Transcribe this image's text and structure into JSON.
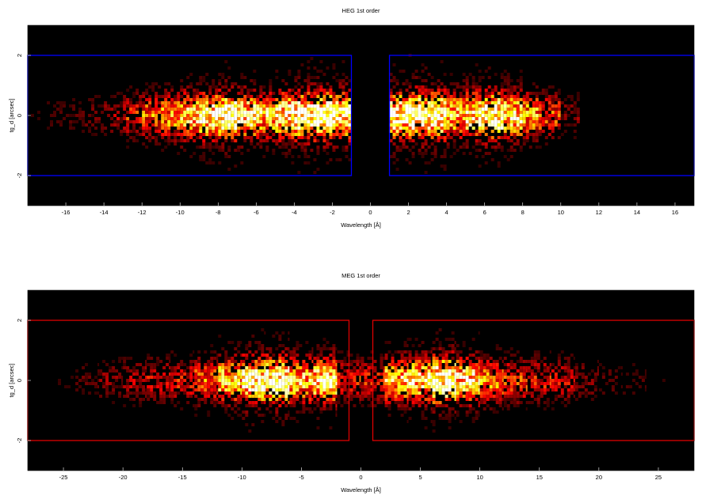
{
  "chart_data": [
    {
      "type": "heatmap",
      "title": "HEG 1st order",
      "xlabel": "Wavelength [Å]",
      "ylabel": "tg_d [arcsec]",
      "xlim": [
        -18,
        17
      ],
      "ylim": [
        -3,
        3
      ],
      "xticks": [
        -16,
        -14,
        -12,
        -10,
        -8,
        -6,
        -4,
        -2,
        0,
        2,
        4,
        6,
        8,
        10,
        12,
        14,
        16
      ],
      "yticks": [
        -2,
        0,
        2
      ],
      "x": [
        -17.5,
        -16.5,
        -15.5,
        -14.5,
        -13.5,
        -12.5,
        -11.5,
        -10.5,
        -9.5,
        -8.5,
        -7.5,
        -6.5,
        -5.5,
        -4.5,
        -3.5,
        -2.5,
        -1.5,
        -0.5,
        0.5,
        1.5,
        2.5,
        3.5,
        4.5,
        5.5,
        6.5,
        7.5,
        8.5,
        9.5,
        10.5,
        11.5,
        12.5,
        13.5,
        14.5,
        15.5,
        16.5
      ],
      "values": [
        0.05,
        0.08,
        0.1,
        0.12,
        0.18,
        0.3,
        0.4,
        0.5,
        0.65,
        0.8,
        0.9,
        0.75,
        0.6,
        0.8,
        0.9,
        0.95,
        0.85,
        0,
        0,
        0.85,
        0.95,
        0.9,
        0.6,
        0.75,
        0.9,
        0.7,
        0.5,
        0.35,
        0.15,
        0.02,
        0.01,
        0.01,
        0.01,
        0.01,
        0.01
      ],
      "bin_width": 1,
      "region_color": "#0000ff",
      "regions": [
        {
          "x": [
            -18,
            -1
          ],
          "y": [
            -2,
            2
          ]
        },
        {
          "x": [
            1,
            17
          ],
          "y": [
            -2,
            2
          ]
        }
      ]
    },
    {
      "type": "heatmap",
      "title": "MEG 1st order",
      "xlabel": "Wavelength [Å]",
      "ylabel": "tg_d [arcsec]",
      "xlim": [
        -28,
        28
      ],
      "ylim": [
        -3,
        3
      ],
      "xticks": [
        -25,
        -20,
        -15,
        -10,
        -5,
        0,
        5,
        10,
        15,
        20,
        25
      ],
      "yticks": [
        -2,
        0,
        2
      ],
      "x": [
        -27,
        -25,
        -23,
        -21,
        -19,
        -17,
        -15,
        -13,
        -11,
        -9,
        -7,
        -5,
        -3,
        -1,
        1,
        3,
        5,
        7,
        9,
        11,
        13,
        15,
        17,
        19,
        21,
        23,
        25,
        27
      ],
      "values": [
        0.02,
        0.05,
        0.1,
        0.15,
        0.2,
        0.25,
        0.3,
        0.4,
        0.6,
        0.85,
        0.9,
        0.6,
        0.75,
        0.3,
        0.3,
        0.6,
        0.7,
        0.95,
        0.7,
        0.45,
        0.35,
        0.3,
        0.25,
        0.15,
        0.1,
        0.08,
        0.05,
        0.03
      ],
      "bin_width": 2,
      "region_color": "#dd0000",
      "regions": [
        {
          "x": [
            -28,
            -1
          ],
          "y": [
            -2,
            2
          ]
        },
        {
          "x": [
            1,
            28
          ],
          "y": [
            -2,
            2
          ]
        }
      ]
    }
  ]
}
